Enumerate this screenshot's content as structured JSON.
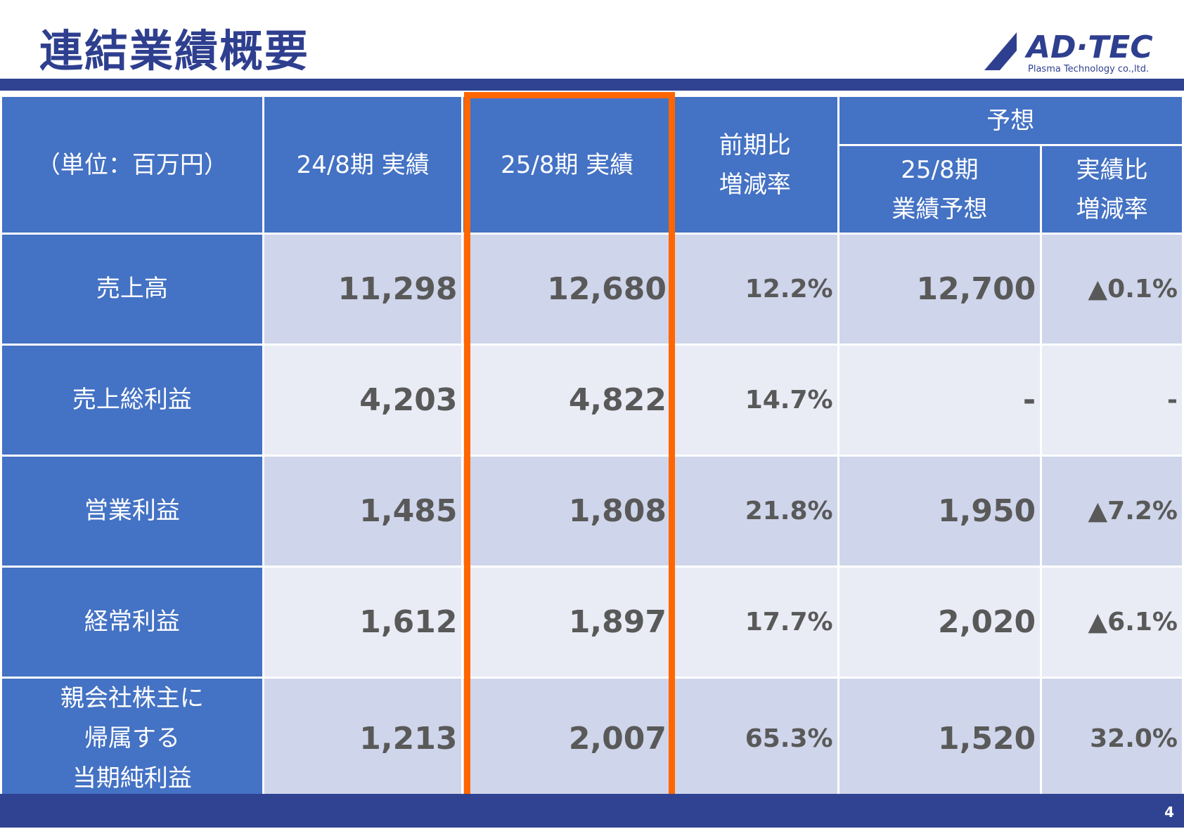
{
  "header": {
    "title": "連結業績概要",
    "logo": {
      "name": "AD·TEC",
      "subtitle": "Plasma Technology co.,ltd."
    }
  },
  "table": {
    "columns": {
      "unit": "（単位：百万円）",
      "prev": "24/8期 実績",
      "curr": "25/8期 実績",
      "yoy": [
        "前期比",
        "増減率"
      ],
      "forecast": "予想",
      "forecast_value": [
        "25/8期",
        "業績予想"
      ],
      "forecast_diff": [
        "実績比",
        "増減率"
      ]
    },
    "rows": [
      {
        "label": [
          "売上高"
        ],
        "cells": [
          "11,298",
          "12,680",
          "12.2%",
          "12,700",
          "▲0.1%"
        ]
      },
      {
        "label": [
          "売上総利益"
        ],
        "cells": [
          "4,203",
          "4,822",
          "14.7%",
          "-",
          "-"
        ]
      },
      {
        "label": [
          "営業利益"
        ],
        "cells": [
          "1,485",
          "1,808",
          "21.8%",
          "1,950",
          "▲7.2%"
        ]
      },
      {
        "label": [
          "経常利益"
        ],
        "cells": [
          "1,612",
          "1,897",
          "17.7%",
          "2,020",
          "▲6.1%"
        ]
      },
      {
        "label": [
          "親会社株主に",
          "帰属する",
          "当期純利益"
        ],
        "cells": [
          "1,213",
          "2,007",
          "65.3%",
          "1,520",
          "32.0%"
        ]
      }
    ]
  },
  "footer": {
    "page": "4"
  }
}
